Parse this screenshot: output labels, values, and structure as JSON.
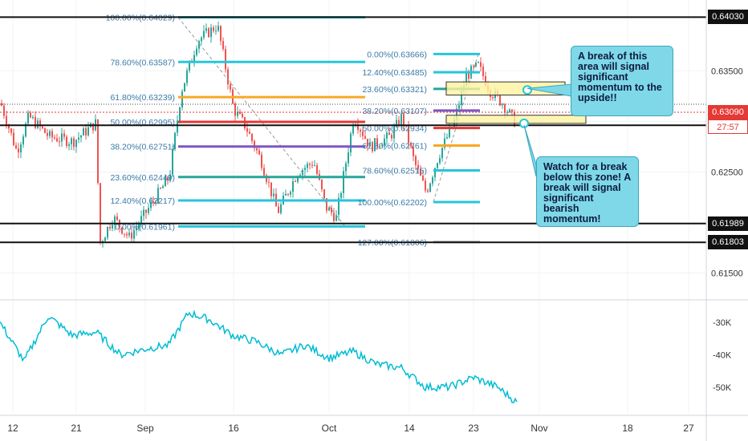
{
  "chart_data": [
    {
      "type": "candlestick",
      "ylim": [
        0.6125,
        0.642
      ],
      "right_axis_ticks": [
        "0.63500",
        "0.63000",
        "0.62500",
        "0.61500"
      ],
      "horizontal_levels": [
        {
          "value": 0.6403,
          "label": "0.64030",
          "style": "black"
        },
        {
          "value": 0.62961,
          "label": "0.62961",
          "style": "black"
        },
        {
          "value": 0.61989,
          "label": "0.61989",
          "style": "black"
        },
        {
          "value": 0.61803,
          "label": "0.61803",
          "style": "black"
        }
      ],
      "current_price": {
        "value": 0.6309,
        "label": "0.63090",
        "countdown": "27:57",
        "color": "#e53935"
      },
      "fibonacci_sets": [
        {
          "name": "",
          "levels": [
            {
              "label": "100.00%(0.64029)",
              "value": 0.64029,
              "color": "#26c6da"
            },
            {
              "label": "78.60%(0.63587)",
              "value": 0.63587,
              "color": "#26c6da"
            },
            {
              "label": "61.80%(0.63239)",
              "value": 0.63239,
              "color": "#f9a825"
            },
            {
              "label": "50.00%(0.62995)",
              "value": 0.62995,
              "color": "#e53935"
            },
            {
              "label": "38.20%(0.62751)",
              "value": 0.62751,
              "color": "#7e57c2"
            },
            {
              "label": "23.60%(0.62449)",
              "value": 0.62449,
              "color": "#26a69a"
            },
            {
              "label": "12.40%(0.62217)",
              "value": 0.62217,
              "color": "#26c6da"
            },
            {
              "label": "0.00%(0.61961)",
              "value": 0.61961,
              "color": "#26c6da"
            }
          ]
        },
        {
          "name": "",
          "levels": [
            {
              "label": "0.00%(0.63666)",
              "value": 0.63666,
              "color": "#26c6da"
            },
            {
              "label": "12.40%(0.63485)",
              "value": 0.63485,
              "color": "#26c6da"
            },
            {
              "label": "23.60%(0.63321)",
              "value": 0.63321,
              "color": "#26a69a"
            },
            {
              "label": "38.20%(0.63107)",
              "value": 0.63107,
              "color": "#7e57c2"
            },
            {
              "label": "50.00%(0.62934)",
              "value": 0.62934,
              "color": "#e53935"
            },
            {
              "label": "61.80%(0.62761)",
              "value": 0.62761,
              "color": "#f9a825"
            },
            {
              "label": "78.60%(0.62515)",
              "value": 0.62515,
              "color": "#26c6da"
            },
            {
              "label": "100.00%(0.62202)",
              "value": 0.62202,
              "color": "#26c6da"
            },
            {
              "label": "127.00%(0.61806)",
              "value": 0.61806,
              "color": "#9e9e9e"
            }
          ]
        }
      ],
      "annotations": [
        {
          "text": "A break of this area will signal significant momentum to the upside!!"
        },
        {
          "text": "Watch for a break below this zone!  A break will signal significant bearish momentum!"
        }
      ],
      "xaxis_ticks": [
        "12",
        "21",
        "Sep",
        "16",
        "Oct",
        "14",
        "23",
        "Nov",
        "18",
        "27"
      ]
    },
    {
      "type": "line",
      "ylim": [
        -58,
        -24
      ],
      "right_axis_ticks": [
        "-30K",
        "-40K",
        "-50K"
      ],
      "series_color": "#00bcd4"
    }
  ]
}
